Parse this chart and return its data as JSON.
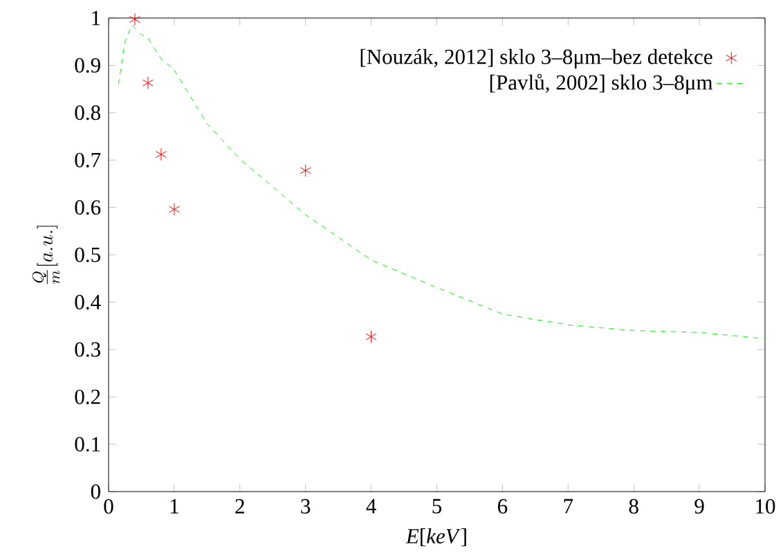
{
  "chart_data": {
    "type": "scatter",
    "xlabel": "*E*[*keV*]",
    "ylabel": "\\frac{Q}{m}[a.u.]",
    "xlim": [
      0,
      10
    ],
    "ylim": [
      0,
      1
    ],
    "xticks": [
      0,
      1,
      2,
      3,
      4,
      5,
      6,
      7,
      8,
      9,
      10
    ],
    "yticks": [
      0,
      0.1,
      0.2,
      0.3,
      0.4,
      0.5,
      0.6,
      0.7,
      0.8,
      0.9,
      1
    ],
    "grid": false,
    "legend": "top right",
    "series": [
      {
        "name": "[Nouzák, 2012] sklo 3–8μm–bez detekce",
        "color": "#ff0000",
        "marker": "cross",
        "x": [
          0.4,
          0.6,
          0.8,
          1,
          3,
          4
        ],
        "values": [
          0.997,
          0.863,
          0.712,
          0.596,
          0.678,
          0.327
        ]
      },
      {
        "name": "[Pavlů, 2002] sklo 3–8μm",
        "type": "line",
        "color": "#00ff00",
        "marker": "none",
        "line_style": "dashed",
        "x": [
          0.15,
          0.25,
          0.35,
          0.4,
          0.5,
          0.6,
          0.8,
          1,
          1.5,
          2,
          3,
          4,
          5,
          6,
          7,
          8,
          9,
          10
        ],
        "values": [
          0.86,
          0.95,
          0.985,
          0.98,
          0.965,
          0.957,
          0.914,
          0.89,
          0.777,
          0.702,
          0.585,
          0.489,
          0.431,
          0.375,
          0.352,
          0.34,
          0.336,
          0.323
        ]
      }
    ]
  }
}
